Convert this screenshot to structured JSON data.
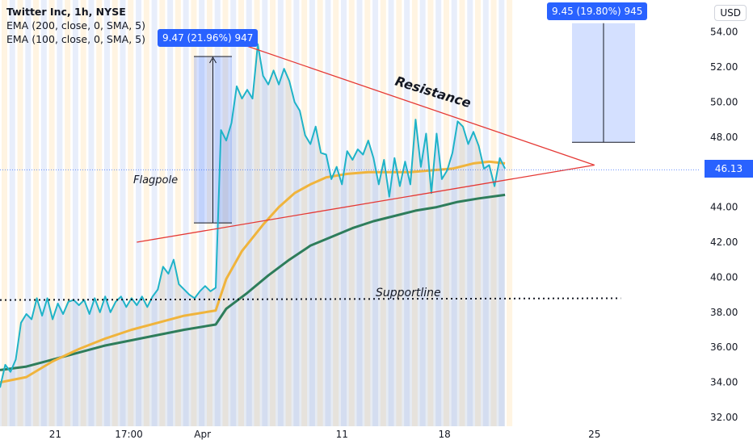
{
  "header": {
    "title": "Twitter Inc, 1h, NYSE",
    "ema200": "EMA (200, close, 0, SMA, 5)",
    "ema100": "EMA (100, close, 0, SMA, 5)"
  },
  "currency_button": "USD",
  "current_price_label": "46.13",
  "badges": {
    "flagpole": "9.47 (21.96%) 947",
    "projection": "9.45 (19.80%) 945"
  },
  "annotations": {
    "flagpole": "Flagpole",
    "resistance": "Resistance",
    "supportline": "Supportline"
  },
  "colors": {
    "price": "#1fb3c8",
    "ema_orange": "#f0b43c",
    "ema_green": "#2e7d5b",
    "trendline": "#e53935",
    "badge": "#2962ff"
  },
  "chart_data": {
    "type": "line",
    "ylim": [
      32,
      55
    ],
    "yticks": [
      32,
      34,
      36,
      38,
      40,
      42,
      44,
      46,
      48,
      50,
      52,
      54
    ],
    "ytick_labels": [
      "32.00",
      "34.00",
      "36.00",
      "38.00",
      "40.00",
      "42.00",
      "44.00",
      "46.00",
      "48.00",
      "50.00",
      "52.00",
      "54.00"
    ],
    "xtick_labels": [
      {
        "label": "21",
        "t": 10.5
      },
      {
        "label": "17:00",
        "t": 24.5
      },
      {
        "label": "Apr",
        "t": 38.5
      },
      {
        "label": "11",
        "t": 65
      },
      {
        "label": "18",
        "t": 84.5
      },
      {
        "label": "25",
        "t": 113
      }
    ],
    "xlim": [
      0,
      133
    ],
    "series": [
      {
        "key": "price",
        "values": [
          [
            0,
            33.7
          ],
          [
            1,
            35.0
          ],
          [
            2,
            34.6
          ],
          [
            3,
            35.3
          ],
          [
            4,
            37.4
          ],
          [
            5,
            37.9
          ],
          [
            6,
            37.6
          ],
          [
            7,
            38.8
          ],
          [
            8,
            37.8
          ],
          [
            9,
            38.8
          ],
          [
            10,
            37.6
          ],
          [
            11,
            38.5
          ],
          [
            12,
            37.9
          ],
          [
            13,
            38.6
          ],
          [
            14,
            38.7
          ],
          [
            15,
            38.4
          ],
          [
            16,
            38.7
          ],
          [
            17,
            37.9
          ],
          [
            18,
            38.8
          ],
          [
            19,
            38.0
          ],
          [
            20,
            38.9
          ],
          [
            21,
            38.0
          ],
          [
            22,
            38.6
          ],
          [
            23,
            38.9
          ],
          [
            24,
            38.3
          ],
          [
            25,
            38.8
          ],
          [
            26,
            38.4
          ],
          [
            27,
            38.9
          ],
          [
            28,
            38.3
          ],
          [
            29,
            38.9
          ],
          [
            30,
            39.3
          ],
          [
            31,
            40.6
          ],
          [
            32,
            40.2
          ],
          [
            33,
            41.0
          ],
          [
            34,
            39.6
          ],
          [
            35,
            39.3
          ],
          [
            36,
            39.0
          ],
          [
            37,
            38.8
          ],
          [
            38,
            39.2
          ],
          [
            39,
            39.5
          ],
          [
            40,
            39.2
          ],
          [
            41,
            39.4
          ],
          [
            42,
            48.4
          ],
          [
            43,
            47.8
          ],
          [
            44,
            48.8
          ],
          [
            45,
            50.9
          ],
          [
            46,
            50.2
          ],
          [
            47,
            50.7
          ],
          [
            48,
            50.2
          ],
          [
            49,
            53.3
          ],
          [
            50,
            51.5
          ],
          [
            51,
            51.0
          ],
          [
            52,
            51.8
          ],
          [
            53,
            51.0
          ],
          [
            54,
            51.9
          ],
          [
            55,
            51.2
          ],
          [
            56,
            50.0
          ],
          [
            57,
            49.5
          ],
          [
            58,
            48.1
          ],
          [
            59,
            47.6
          ],
          [
            60,
            48.6
          ],
          [
            61,
            47.1
          ],
          [
            62,
            47.0
          ],
          [
            63,
            45.6
          ],
          [
            64,
            46.3
          ],
          [
            65,
            45.3
          ],
          [
            66,
            47.2
          ],
          [
            67,
            46.7
          ],
          [
            68,
            47.3
          ],
          [
            69,
            47.0
          ],
          [
            70,
            47.8
          ],
          [
            71,
            46.8
          ],
          [
            72,
            45.3
          ],
          [
            73,
            46.7
          ],
          [
            74,
            44.6
          ],
          [
            75,
            46.8
          ],
          [
            76,
            45.2
          ],
          [
            77,
            46.6
          ],
          [
            78,
            45.3
          ],
          [
            79,
            49.0
          ],
          [
            80,
            46.3
          ],
          [
            81,
            48.2
          ],
          [
            82,
            44.8
          ],
          [
            83,
            48.2
          ],
          [
            84,
            45.6
          ],
          [
            85,
            46.1
          ],
          [
            86,
            47.1
          ],
          [
            87,
            48.9
          ],
          [
            88,
            48.6
          ],
          [
            89,
            47.6
          ],
          [
            90,
            48.3
          ],
          [
            91,
            47.5
          ],
          [
            92,
            46.2
          ],
          [
            93,
            46.4
          ],
          [
            94,
            45.2
          ],
          [
            95,
            46.8
          ],
          [
            96,
            46.2
          ]
        ]
      },
      {
        "key": "ema_orange",
        "values": [
          [
            0,
            34.0
          ],
          [
            5,
            34.3
          ],
          [
            10,
            35.2
          ],
          [
            15,
            35.9
          ],
          [
            20,
            36.5
          ],
          [
            25,
            37.0
          ],
          [
            30,
            37.4
          ],
          [
            35,
            37.8
          ],
          [
            41,
            38.1
          ],
          [
            43,
            39.9
          ],
          [
            46,
            41.5
          ],
          [
            50,
            43.0
          ],
          [
            53,
            44.0
          ],
          [
            56,
            44.8
          ],
          [
            59,
            45.3
          ],
          [
            62,
            45.7
          ],
          [
            66,
            45.9
          ],
          [
            70,
            46.0
          ],
          [
            74,
            46.0
          ],
          [
            78,
            46.0
          ],
          [
            82,
            46.1
          ],
          [
            86,
            46.2
          ],
          [
            90,
            46.5
          ],
          [
            93,
            46.6
          ],
          [
            96,
            46.5
          ]
        ]
      },
      {
        "key": "ema_green",
        "values": [
          [
            0,
            34.7
          ],
          [
            5,
            34.9
          ],
          [
            10,
            35.3
          ],
          [
            15,
            35.7
          ],
          [
            20,
            36.1
          ],
          [
            25,
            36.4
          ],
          [
            30,
            36.7
          ],
          [
            35,
            37.0
          ],
          [
            41,
            37.3
          ],
          [
            43,
            38.2
          ],
          [
            47,
            39.1
          ],
          [
            51,
            40.1
          ],
          [
            55,
            41.0
          ],
          [
            59,
            41.8
          ],
          [
            63,
            42.3
          ],
          [
            67,
            42.8
          ],
          [
            71,
            43.2
          ],
          [
            75,
            43.5
          ],
          [
            79,
            43.8
          ],
          [
            83,
            44.0
          ],
          [
            87,
            44.3
          ],
          [
            91,
            44.5
          ],
          [
            96,
            44.7
          ]
        ]
      }
    ],
    "resistance_line": [
      [
        43,
        53.6
      ],
      [
        113,
        46.4
      ]
    ],
    "support_trendline": [
      [
        26,
        42.0
      ],
      [
        113,
        46.4
      ]
    ],
    "supportline": [
      [
        0,
        38.7
      ],
      [
        118,
        38.8
      ]
    ],
    "flagpole_range": [
      43.1,
      52.6
    ],
    "projection_range": [
      47.7,
      54.5
    ],
    "current_price": 46.13
  }
}
